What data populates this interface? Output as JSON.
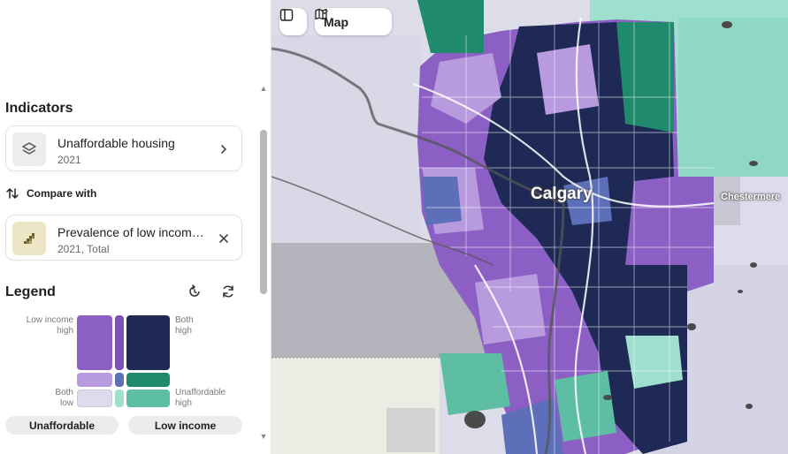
{
  "sidebar": {
    "indicators_title": "Indicators",
    "indicator_card": {
      "title": "Unaffordable housing",
      "year": "2021"
    },
    "compare_label": "Compare with",
    "compare_card": {
      "title": "Prevalence of low income...",
      "sub": "2021, Total"
    },
    "legend_title": "Legend",
    "legend": {
      "top_left": "Low income high",
      "top_right": "Both high",
      "bottom_left": "Both low",
      "bottom_right": "Unaffordable high",
      "colors": {
        "top_left": "#8c5fc4",
        "top_mid": "#7d52b8",
        "top_right": "#1e2a55",
        "mid_left": "#b79bde",
        "center": "#5c6fb8",
        "mid_right": "#1f8a6c",
        "bottom_left": "#dcdcec",
        "bottom_mid": "#9edfce",
        "bottom_right": "#5ebea4"
      }
    },
    "buttons": {
      "unaffordable": "Unaffordable",
      "low_income": "Low income"
    }
  },
  "map": {
    "view_label": "Map",
    "city": "Calgary",
    "town": "Chestermere",
    "colors": {
      "dark": "#1e2a55",
      "purple": "#8c5fc4",
      "light_purple": "#b79bde",
      "mid_blue": "#5c6fb8",
      "teal": "#1f8a6c",
      "light_teal": "#9edfce",
      "pale": "#dcdcec"
    }
  }
}
